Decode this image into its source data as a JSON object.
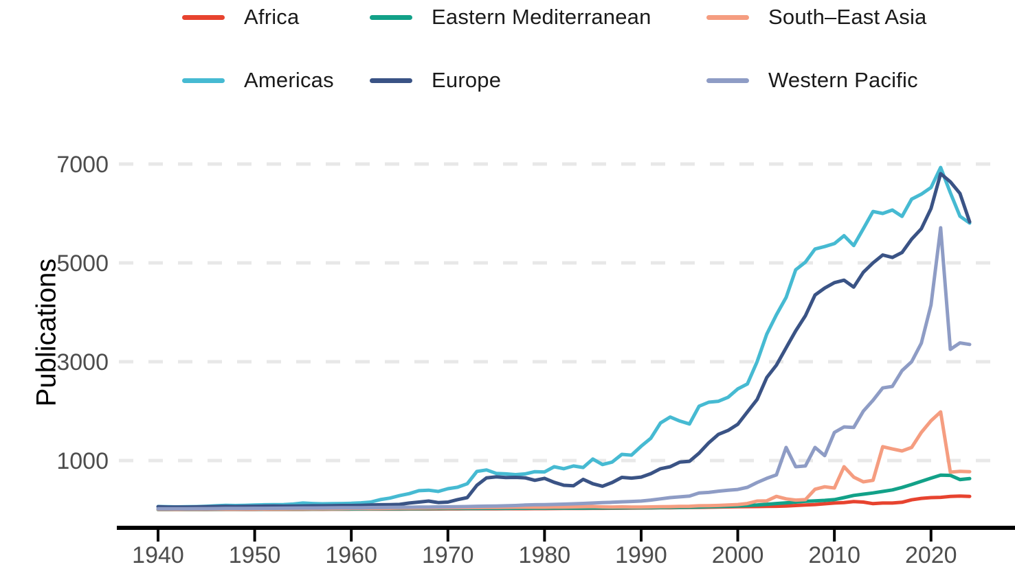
{
  "chart_data": {
    "type": "line",
    "title": "",
    "xlabel": "",
    "ylabel": "Publications",
    "x_ticks": [
      1940,
      1950,
      1960,
      1970,
      1980,
      1990,
      2000,
      2010,
      2020
    ],
    "y_ticks": [
      1000,
      3000,
      5000,
      7000
    ],
    "xlim": [
      1936,
      2026
    ],
    "ylim": [
      0,
      7350
    ],
    "grid": "horizontal-dashed",
    "legend_position": "top",
    "legend_rows": [
      [
        "Africa",
        "Eastern Mediterranean",
        "South–East Asia"
      ],
      [
        "Americas",
        "Europe",
        "Western Pacific"
      ]
    ],
    "years": [
      1940,
      1941,
      1942,
      1943,
      1944,
      1945,
      1946,
      1947,
      1948,
      1949,
      1950,
      1951,
      1952,
      1953,
      1954,
      1955,
      1956,
      1957,
      1958,
      1959,
      1960,
      1961,
      1962,
      1963,
      1964,
      1965,
      1966,
      1967,
      1968,
      1969,
      1970,
      1971,
      1972,
      1973,
      1974,
      1975,
      1976,
      1977,
      1978,
      1979,
      1980,
      1981,
      1982,
      1983,
      1984,
      1985,
      1986,
      1987,
      1988,
      1989,
      1990,
      1991,
      1992,
      1993,
      1994,
      1995,
      1996,
      1997,
      1998,
      1999,
      2000,
      2001,
      2002,
      2003,
      2004,
      2005,
      2006,
      2007,
      2008,
      2009,
      2010,
      2011,
      2012,
      2013,
      2014,
      2015,
      2016,
      2017,
      2018,
      2019,
      2020,
      2021,
      2022,
      2023,
      2024
    ],
    "series": [
      {
        "name": "Africa",
        "color": "#e7432f",
        "values": [
          8,
          8,
          8,
          8,
          9,
          9,
          10,
          10,
          10,
          11,
          11,
          12,
          12,
          12,
          13,
          13,
          14,
          14,
          15,
          15,
          16,
          16,
          17,
          17,
          18,
          18,
          19,
          20,
          20,
          21,
          22,
          22,
          23,
          24,
          25,
          25,
          26,
          27,
          27,
          28,
          28,
          29,
          30,
          31,
          32,
          33,
          34,
          35,
          36,
          38,
          40,
          42,
          44,
          46,
          48,
          50,
          53,
          56,
          60,
          62,
          65,
          68,
          70,
          72,
          75,
          80,
          90,
          100,
          110,
          125,
          140,
          150,
          170,
          160,
          128,
          140,
          140,
          155,
          205,
          235,
          250,
          255,
          275,
          280,
          275
        ]
      },
      {
        "name": "Americas",
        "color": "#46bad2",
        "values": [
          70,
          65,
          62,
          65,
          68,
          75,
          85,
          95,
          90,
          95,
          100,
          105,
          108,
          110,
          120,
          140,
          130,
          125,
          128,
          130,
          135,
          145,
          160,
          210,
          240,
          290,
          330,
          390,
          400,
          375,
          430,
          460,
          530,
          780,
          810,
          740,
          730,
          715,
          730,
          775,
          770,
          875,
          835,
          890,
          860,
          1030,
          920,
          970,
          1125,
          1110,
          1290,
          1450,
          1760,
          1880,
          1800,
          1740,
          2100,
          2180,
          2200,
          2280,
          2450,
          2550,
          3000,
          3560,
          3950,
          4300,
          4860,
          5015,
          5280,
          5330,
          5390,
          5550,
          5350,
          5690,
          6040,
          6000,
          6070,
          5940,
          6290,
          6390,
          6525,
          6930,
          6420,
          5945,
          5805
        ]
      },
      {
        "name": "Eastern Mediterranean",
        "color": "#12a188",
        "values": [
          10,
          10,
          10,
          10,
          11,
          12,
          13,
          14,
          14,
          15,
          15,
          16,
          16,
          17,
          17,
          18,
          18,
          19,
          19,
          20,
          20,
          21,
          22,
          23,
          24,
          25,
          26,
          27,
          28,
          29,
          30,
          30,
          31,
          32,
          33,
          34,
          34,
          35,
          35,
          36,
          36,
          37,
          38,
          38,
          39,
          40,
          41,
          42,
          43,
          44,
          45,
          47,
          49,
          51,
          53,
          55,
          60,
          65,
          70,
          75,
          80,
          90,
          100,
          115,
          130,
          145,
          160,
          175,
          185,
          195,
          210,
          250,
          295,
          320,
          345,
          375,
          405,
          455,
          515,
          580,
          645,
          705,
          700,
          615,
          635
        ]
      },
      {
        "name": "Europe",
        "color": "#3a5385",
        "values": [
          65,
          60,
          58,
          60,
          62,
          65,
          70,
          72,
          70,
          72,
          75,
          78,
          80,
          78,
          80,
          82,
          85,
          85,
          88,
          90,
          90,
          95,
          100,
          105,
          108,
          112,
          140,
          160,
          180,
          150,
          160,
          210,
          250,
          500,
          650,
          670,
          655,
          660,
          650,
          600,
          640,
          560,
          500,
          490,
          620,
          530,
          480,
          555,
          660,
          645,
          665,
          735,
          835,
          875,
          970,
          985,
          1150,
          1360,
          1530,
          1610,
          1735,
          1985,
          2235,
          2680,
          2930,
          3280,
          3625,
          3930,
          4350,
          4490,
          4600,
          4650,
          4510,
          4810,
          5000,
          5160,
          5110,
          5210,
          5480,
          5690,
          6100,
          6805,
          6640,
          6405,
          5830
        ]
      },
      {
        "name": "South–East Asia",
        "color": "#f59d80",
        "values": [
          15,
          15,
          14,
          15,
          15,
          16,
          17,
          18,
          18,
          19,
          20,
          21,
          22,
          22,
          23,
          24,
          25,
          26,
          27,
          28,
          30,
          31,
          32,
          34,
          35,
          37,
          38,
          40,
          42,
          44,
          45,
          47,
          48,
          50,
          52,
          53,
          54,
          55,
          55,
          56,
          55,
          58,
          60,
          62,
          65,
          70,
          62,
          60,
          62,
          60,
          60,
          62,
          65,
          68,
          72,
          75,
          85,
          88,
          92,
          100,
          110,
          130,
          180,
          185,
          275,
          225,
          200,
          210,
          420,
          470,
          445,
          875,
          665,
          570,
          600,
          1280,
          1235,
          1195,
          1265,
          1570,
          1805,
          1985,
          765,
          780,
          775
        ]
      },
      {
        "name": "Western Pacific",
        "color": "#8e9cc5",
        "values": [
          25,
          25,
          24,
          25,
          26,
          27,
          28,
          30,
          30,
          32,
          33,
          34,
          35,
          36,
          38,
          40,
          40,
          42,
          43,
          44,
          45,
          46,
          48,
          50,
          52,
          54,
          55,
          58,
          60,
          62,
          64,
          66,
          70,
          75,
          78,
          80,
          85,
          90,
          100,
          105,
          108,
          112,
          118,
          125,
          132,
          140,
          148,
          155,
          165,
          172,
          180,
          200,
          225,
          250,
          265,
          280,
          345,
          355,
          380,
          400,
          415,
          458,
          555,
          640,
          710,
          1265,
          875,
          890,
          1265,
          1100,
          1570,
          1680,
          1670,
          2000,
          2220,
          2470,
          2500,
          2820,
          3000,
          3375,
          4150,
          5710,
          3250,
          3380,
          3350
        ]
      }
    ],
    "style": {
      "grid_color": "#e8e8e8",
      "axis_color": "#000000",
      "tick_label_color": "#4d4d4d",
      "line_width": 5
    }
  }
}
